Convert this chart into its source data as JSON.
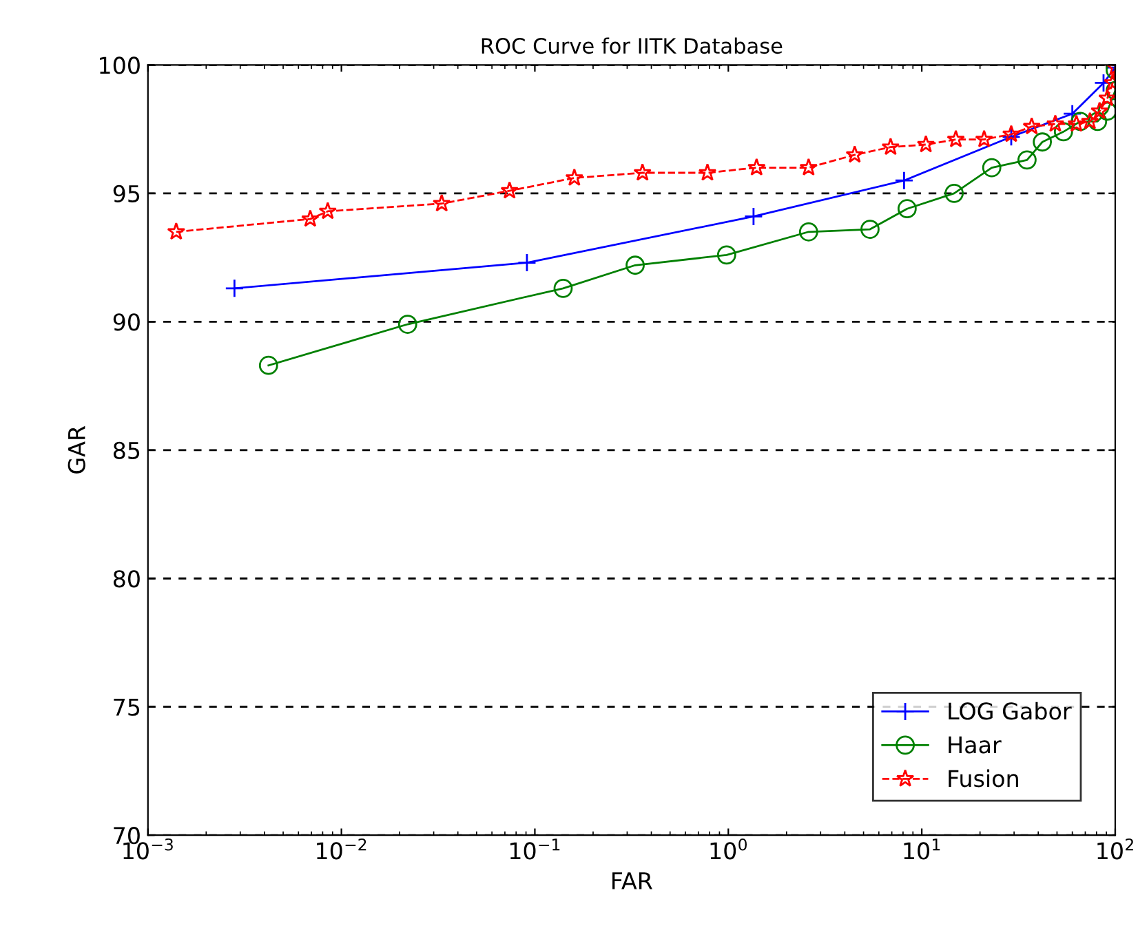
{
  "chart_data": {
    "type": "line",
    "title": "ROC Curve for IITK Database",
    "xlabel": "FAR",
    "ylabel": "GAR",
    "log": "x",
    "xlim": [
      0.001,
      100
    ],
    "xticks": [
      {
        "value": 0.001,
        "label": "10$^{−3}$"
      },
      {
        "value": 0.01,
        "label": "10$^{−2}$"
      },
      {
        "value": 0.1,
        "label": "10$^{−1}$"
      },
      {
        "value": 1,
        "label": "10$^{0}$"
      },
      {
        "value": 10,
        "label": "10$^{1}$"
      },
      {
        "value": 100,
        "label": "10$^{2}$"
      }
    ],
    "ylim": [
      70,
      100
    ],
    "yticks": [
      70,
      75,
      80,
      85,
      90,
      95,
      100
    ],
    "grid": "y",
    "legend": "bottom right",
    "series": [
      {
        "name": "LOG Gabor",
        "color": "#0000ff",
        "marker": "cross",
        "line_style": "solid",
        "x": [
          0.0028,
          0.091,
          1.35,
          8.1,
          29,
          60,
          87,
          100
        ],
        "values": [
          91.3,
          92.3,
          94.1,
          95.5,
          97.2,
          98.1,
          99.3,
          99.9
        ]
      },
      {
        "name": "Haar",
        "color": "#008000",
        "marker": "circle",
        "line_style": "solid",
        "x": [
          0.0042,
          0.022,
          0.14,
          0.33,
          0.98,
          2.6,
          5.4,
          8.4,
          14.7,
          23,
          35,
          42,
          54,
          66,
          81,
          91,
          100,
          100
        ],
        "values": [
          88.3,
          89.9,
          91.3,
          92.2,
          92.6,
          93.5,
          93.6,
          94.4,
          95.0,
          96.0,
          96.3,
          97.0,
          97.4,
          97.8,
          97.8,
          98.2,
          99.0,
          99.8
        ]
      },
      {
        "name": "Fusion",
        "color": "#ff0000",
        "marker": "star",
        "line_style": "dashed",
        "x": [
          0.0014,
          0.0069,
          0.0085,
          0.033,
          0.074,
          0.16,
          0.36,
          0.78,
          1.4,
          2.6,
          4.5,
          6.9,
          10.5,
          15,
          21,
          29,
          37,
          49,
          63,
          74,
          83,
          91,
          97,
          100
        ],
        "values": [
          93.5,
          94.0,
          94.3,
          94.6,
          95.1,
          95.6,
          95.8,
          95.8,
          96.0,
          96.0,
          96.5,
          96.8,
          96.9,
          97.1,
          97.1,
          97.3,
          97.6,
          97.7,
          97.7,
          97.8,
          98.2,
          98.7,
          99.3,
          99.9
        ]
      }
    ]
  }
}
